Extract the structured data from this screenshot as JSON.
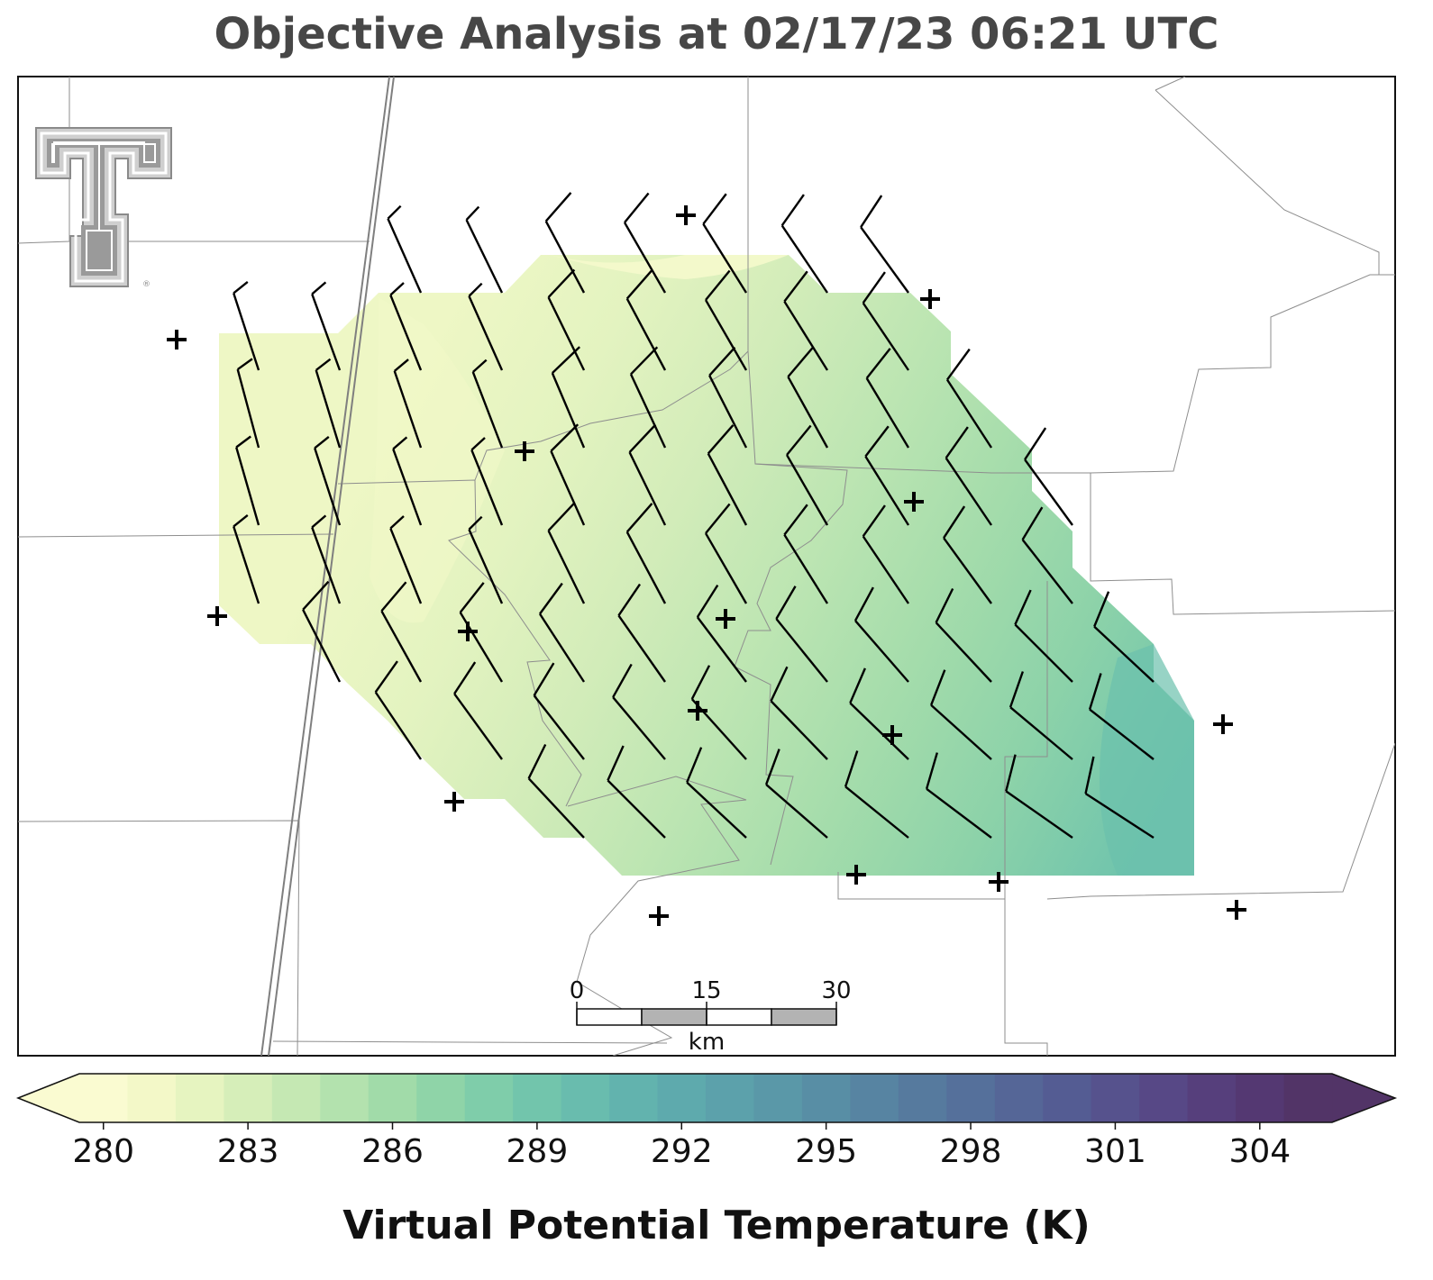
{
  "title": "Objective Analysis at 02/17/23 06:21 UTC",
  "logo": {
    "name": "texas-tech-double-t",
    "mark": "®"
  },
  "colorbar": {
    "label": "Virtual Potential Temperature (K)",
    "ticks": [
      "280",
      "283",
      "286",
      "289",
      "292",
      "295",
      "298",
      "301",
      "304"
    ],
    "min": 279.5,
    "max": 306,
    "extend": "both",
    "colormap": "viridis-like pastel (light yellow → green → teal → blue → purple)",
    "colors": [
      "#fafbd1",
      "#f3f8c8",
      "#e6f4c0",
      "#d6eeb9",
      "#c5e8b3",
      "#b3e2ae",
      "#a1dba9",
      "#8fd4a8",
      "#7fcdaa",
      "#72c5ac",
      "#69bcae",
      "#62b3ae",
      "#5eaaad",
      "#5ca1ab",
      "#5a98a8",
      "#588ea5",
      "#5784a2",
      "#567a9e",
      "#55709b",
      "#556697",
      "#545c93",
      "#56528d",
      "#574886",
      "#563f7c",
      "#543872",
      "#523467"
    ]
  },
  "scale_bar": {
    "labels": [
      "0",
      "15",
      "30"
    ],
    "unit": "km"
  },
  "stations": "14 observing stations marked with + symbols",
  "wind_barbs": "gridded wind barbs (mostly north-northwest to northwest winds, 10 kt)",
  "field_range_K": [
    281,
    290
  ]
}
